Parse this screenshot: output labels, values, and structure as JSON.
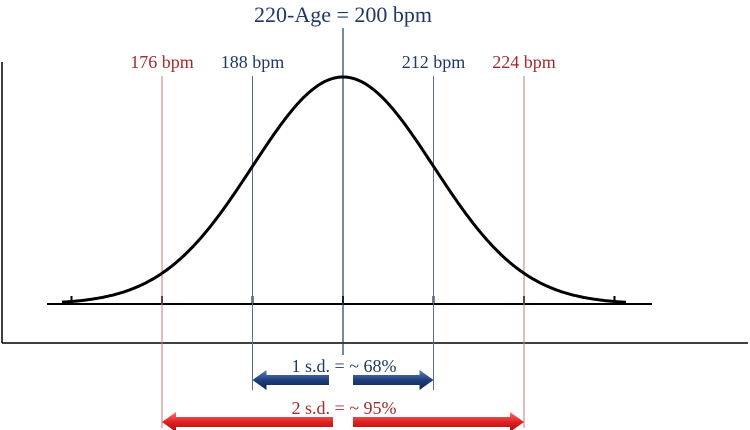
{
  "title": "220-Age = 200 bpm",
  "mean_bpm": 200,
  "sd_bpm": 12,
  "markers": [
    {
      "key": "m176",
      "bpm": 176,
      "label": "176 bpm",
      "color": "#a52a2a"
    },
    {
      "key": "m188",
      "bpm": 188,
      "label": "188 bpm",
      "color": "#1f3864"
    },
    {
      "key": "m212",
      "bpm": 212,
      "label": "212 bpm",
      "color": "#1f3864"
    },
    {
      "key": "m224",
      "bpm": 224,
      "label": "224 bpm",
      "color": "#a52a2a"
    }
  ],
  "ranges": {
    "one_sd": {
      "label": "1 s.d. = ~ 68%",
      "from_bpm": 188,
      "to_bpm": 212,
      "color": "#1f3f7a"
    },
    "two_sd": {
      "label": "2 s.d. = ~ 95%",
      "from_bpm": 176,
      "to_bpm": 224,
      "color": "#e02020"
    }
  },
  "colors": {
    "curve": "#000000",
    "axis": "#000000",
    "center_line": "#1f3864",
    "title_text": "#1f3864",
    "one_sd_text": "#1f3864",
    "two_sd_text": "#a52a2a"
  }
}
